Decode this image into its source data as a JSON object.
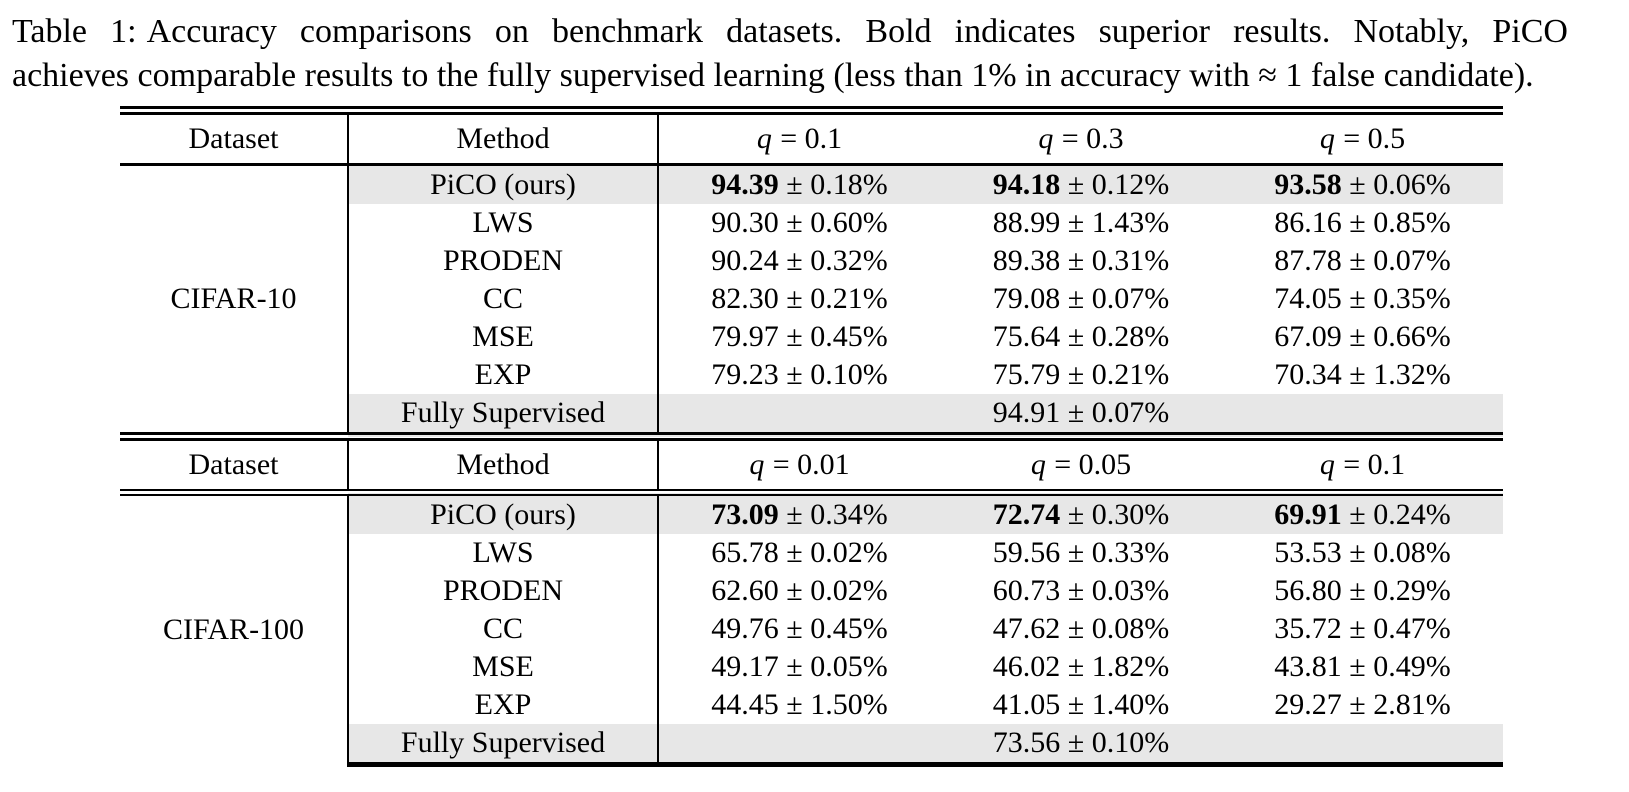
{
  "caption": {
    "label": "Table 1:",
    "line1": "Accuracy comparisons on benchmark datasets.  Bold indicates superior results.  Notably, PiCO",
    "line2": "achieves comparable results to the fully supervised learning (less than 1% in accuracy with ≈ 1 false candidate)."
  },
  "colors": {
    "row_highlight": "#e7e7e7",
    "text": "#000000",
    "background": "#ffffff"
  },
  "sections": [
    {
      "dataset": "CIFAR-10",
      "header": {
        "dataset": "Dataset",
        "method": "Method",
        "cols": [
          {
            "var": "q",
            "rest": "= 0.1"
          },
          {
            "var": "q",
            "rest": "= 0.3"
          },
          {
            "var": "q",
            "rest": "= 0.5"
          }
        ]
      },
      "rows": [
        {
          "method": "PiCO (ours)",
          "cells": [
            {
              "mean": "94.39",
              "pm": "± 0.18%"
            },
            {
              "mean": "94.18",
              "pm": "± 0.12%"
            },
            {
              "mean": "93.58",
              "pm": "± 0.06%"
            }
          ]
        },
        {
          "method": "LWS",
          "cells": [
            {
              "mean": "90.30",
              "pm": "± 0.60%"
            },
            {
              "mean": "88.99",
              "pm": "± 1.43%"
            },
            {
              "mean": "86.16",
              "pm": "± 0.85%"
            }
          ]
        },
        {
          "method": "PRODEN",
          "cells": [
            {
              "mean": "90.24",
              "pm": "± 0.32%"
            },
            {
              "mean": "89.38",
              "pm": "± 0.31%"
            },
            {
              "mean": "87.78",
              "pm": "± 0.07%"
            }
          ]
        },
        {
          "method": "CC",
          "cells": [
            {
              "mean": "82.30",
              "pm": "± 0.21%"
            },
            {
              "mean": "79.08",
              "pm": "± 0.07%"
            },
            {
              "mean": "74.05",
              "pm": "± 0.35%"
            }
          ]
        },
        {
          "method": "MSE",
          "cells": [
            {
              "mean": "79.97",
              "pm": "± 0.45%"
            },
            {
              "mean": "75.64",
              "pm": "± 0.28%"
            },
            {
              "mean": "67.09",
              "pm": "± 0.66%"
            }
          ]
        },
        {
          "method": "EXP",
          "cells": [
            {
              "mean": "79.23",
              "pm": "± 0.10%"
            },
            {
              "mean": "75.79",
              "pm": "± 0.21%"
            },
            {
              "mean": "70.34",
              "pm": "± 1.32%"
            }
          ]
        }
      ],
      "fully_supervised": {
        "method": "Fully Supervised",
        "mean": "94.91",
        "pm": "± 0.07%"
      }
    },
    {
      "dataset": "CIFAR-100",
      "header": {
        "dataset": "Dataset",
        "method": "Method",
        "cols": [
          {
            "var": "q",
            "rest": "= 0.01"
          },
          {
            "var": "q",
            "rest": "= 0.05"
          },
          {
            "var": "q",
            "rest": "= 0.1"
          }
        ]
      },
      "rows": [
        {
          "method": "PiCO (ours)",
          "cells": [
            {
              "mean": "73.09",
              "pm": "± 0.34%"
            },
            {
              "mean": "72.74",
              "pm": "± 0.30%"
            },
            {
              "mean": "69.91",
              "pm": "± 0.24%"
            }
          ]
        },
        {
          "method": "LWS",
          "cells": [
            {
              "mean": "65.78",
              "pm": "± 0.02%"
            },
            {
              "mean": "59.56",
              "pm": "± 0.33%"
            },
            {
              "mean": "53.53",
              "pm": "± 0.08%"
            }
          ]
        },
        {
          "method": "PRODEN",
          "cells": [
            {
              "mean": "62.60",
              "pm": "± 0.02%"
            },
            {
              "mean": "60.73",
              "pm": "± 0.03%"
            },
            {
              "mean": "56.80",
              "pm": "± 0.29%"
            }
          ]
        },
        {
          "method": "CC",
          "cells": [
            {
              "mean": "49.76",
              "pm": "± 0.45%"
            },
            {
              "mean": "47.62",
              "pm": "± 0.08%"
            },
            {
              "mean": "35.72",
              "pm": "± 0.47%"
            }
          ]
        },
        {
          "method": "MSE",
          "cells": [
            {
              "mean": "49.17",
              "pm": "± 0.05%"
            },
            {
              "mean": "46.02",
              "pm": "± 1.82%"
            },
            {
              "mean": "43.81",
              "pm": "± 0.49%"
            }
          ]
        },
        {
          "method": "EXP",
          "cells": [
            {
              "mean": "44.45",
              "pm": "± 1.50%"
            },
            {
              "mean": "41.05",
              "pm": "± 1.40%"
            },
            {
              "mean": "29.27",
              "pm": "± 2.81%"
            }
          ]
        }
      ],
      "fully_supervised": {
        "method": "Fully Supervised",
        "mean": "73.56",
        "pm": "± 0.10%"
      }
    }
  ]
}
